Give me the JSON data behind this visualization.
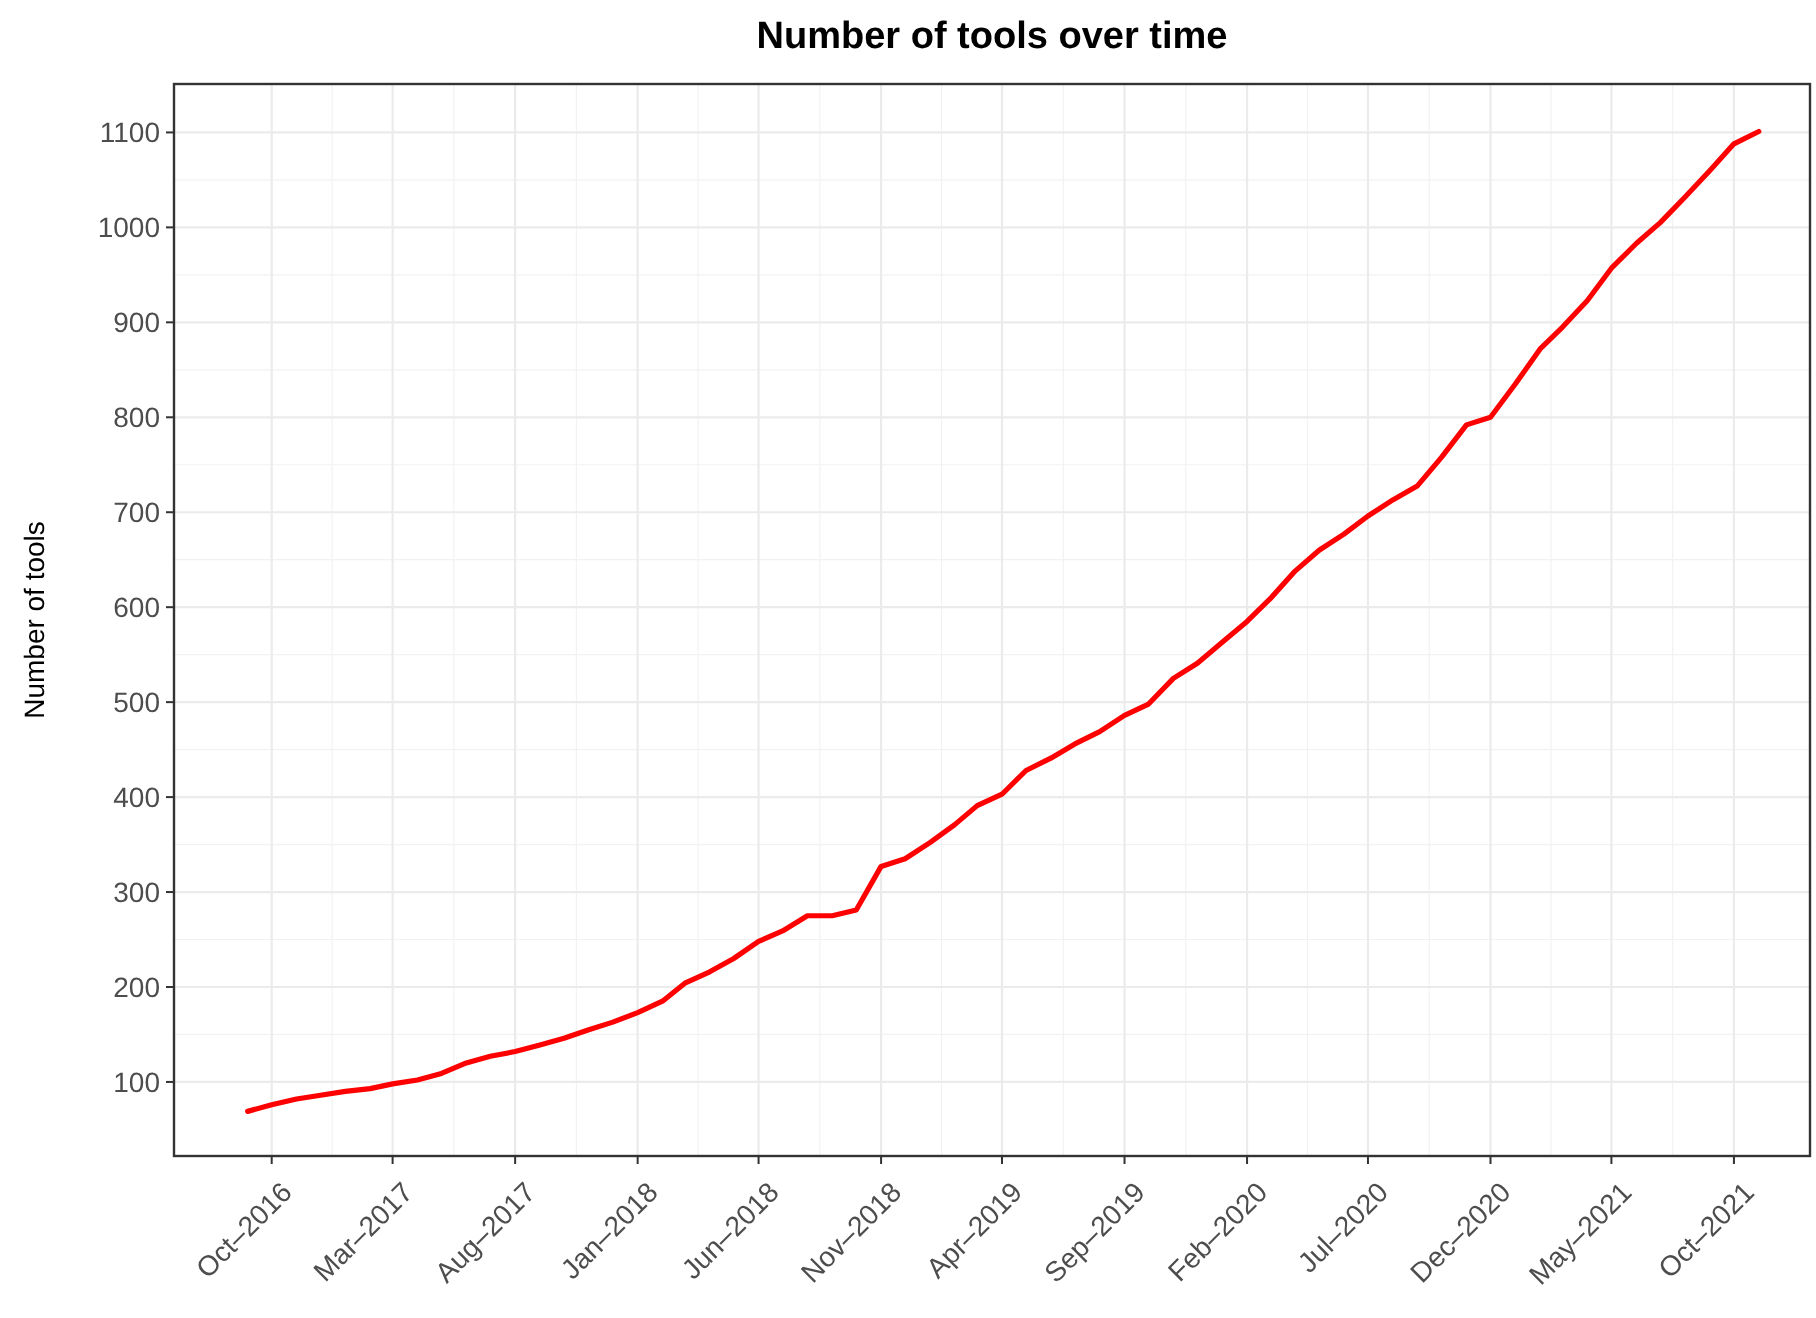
{
  "chart_data": {
    "type": "line",
    "title": "Number of tools over time",
    "ylabel": "Number of tools",
    "x": [
      "2016-09",
      "2016-10",
      "2016-11",
      "2016-12",
      "2017-01",
      "2017-02",
      "2017-03",
      "2017-04",
      "2017-05",
      "2017-06",
      "2017-07",
      "2017-08",
      "2017-09",
      "2017-10",
      "2017-11",
      "2017-12",
      "2018-01",
      "2018-02",
      "2018-03",
      "2018-04",
      "2018-05",
      "2018-06",
      "2018-07",
      "2018-08",
      "2018-09",
      "2018-10",
      "2018-11",
      "2018-12",
      "2019-01",
      "2019-02",
      "2019-03",
      "2019-04",
      "2019-05",
      "2019-06",
      "2019-07",
      "2019-08",
      "2019-09",
      "2019-10",
      "2019-11",
      "2019-12",
      "2020-01",
      "2020-02",
      "2020-03",
      "2020-04",
      "2020-05",
      "2020-06",
      "2020-07",
      "2020-08",
      "2020-09",
      "2020-10",
      "2020-11",
      "2020-12",
      "2021-01",
      "2021-02",
      "2021-03",
      "2021-04",
      "2021-05",
      "2021-06",
      "2021-07",
      "2021-08",
      "2021-09",
      "2021-10",
      "2021-11"
    ],
    "series": [
      {
        "color": "#ff0000",
        "values": [
          69,
          76,
          82,
          86,
          90,
          93,
          98,
          102,
          109,
          120,
          127,
          132,
          139,
          146,
          155,
          163,
          173,
          185,
          204,
          216,
          230,
          248,
          259,
          275,
          275,
          281,
          327,
          335,
          352,
          371,
          391,
          403,
          428,
          441,
          456,
          469,
          486,
          498,
          525,
          541,
          563,
          585,
          609,
          638,
          660,
          677,
          696,
          713,
          728,
          758,
          792,
          800,
          835,
          872,
          895,
          923,
          957,
          983,
          1005,
          1032,
          1060,
          1088,
          1101
        ]
      }
    ],
    "xlim": [
      "2016-06-01",
      "2022-01-04"
    ],
    "xticks": [
      {
        "value": "2016-10",
        "label": "Oct–2016"
      },
      {
        "value": "2017-03",
        "label": "Mar–2017"
      },
      {
        "value": "2017-08",
        "label": "Aug–2017"
      },
      {
        "value": "2018-01",
        "label": "Jan–2018"
      },
      {
        "value": "2018-06",
        "label": "Jun–2018"
      },
      {
        "value": "2018-11",
        "label": "Nov–2018"
      },
      {
        "value": "2019-04",
        "label": "Apr–2019"
      },
      {
        "value": "2019-09",
        "label": "Sep–2019"
      },
      {
        "value": "2020-02",
        "label": "Feb–2020"
      },
      {
        "value": "2020-07",
        "label": "Jul–2020"
      },
      {
        "value": "2020-12",
        "label": "Dec–2020"
      },
      {
        "value": "2021-05",
        "label": "May–2021"
      },
      {
        "value": "2021-10",
        "label": "Oct–2021"
      }
    ],
    "ylim": [
      22,
      1151
    ],
    "yticks": [
      100,
      200,
      300,
      400,
      500,
      600,
      700,
      800,
      900,
      1000,
      1100
    ],
    "grid": true,
    "marker": "none",
    "line_style": "solid"
  }
}
